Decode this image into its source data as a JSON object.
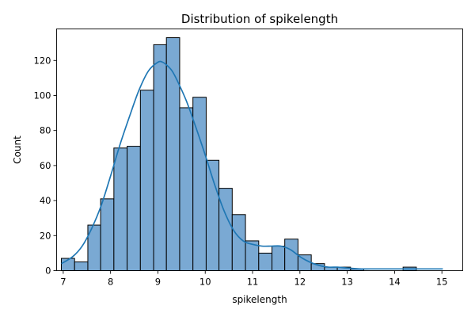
{
  "chart_data": {
    "type": "bar",
    "title": "Distribution of spikelength",
    "xlabel": "spikelength",
    "ylabel": "Count",
    "xlim": [
      6.86,
      15.44
    ],
    "ylim": [
      0,
      138
    ],
    "xticks": [
      7,
      8,
      9,
      10,
      11,
      12,
      13,
      14,
      15
    ],
    "yticks": [
      0,
      20,
      40,
      60,
      80,
      100,
      120
    ],
    "grid": false,
    "bar_color": "#7aa9d3",
    "kde_color": "#1f77b4",
    "bins": [
      {
        "start": 6.96,
        "end": 7.24,
        "count": 7
      },
      {
        "start": 7.24,
        "end": 7.52,
        "count": 5
      },
      {
        "start": 7.52,
        "end": 7.79,
        "count": 26
      },
      {
        "start": 7.79,
        "end": 8.07,
        "count": 41
      },
      {
        "start": 8.07,
        "end": 8.35,
        "count": 70
      },
      {
        "start": 8.35,
        "end": 8.63,
        "count": 71
      },
      {
        "start": 8.63,
        "end": 8.91,
        "count": 103
      },
      {
        "start": 8.91,
        "end": 9.18,
        "count": 129
      },
      {
        "start": 9.18,
        "end": 9.46,
        "count": 133
      },
      {
        "start": 9.46,
        "end": 9.74,
        "count": 93
      },
      {
        "start": 9.74,
        "end": 10.02,
        "count": 99
      },
      {
        "start": 10.02,
        "end": 10.29,
        "count": 63
      },
      {
        "start": 10.29,
        "end": 10.57,
        "count": 47
      },
      {
        "start": 10.57,
        "end": 10.85,
        "count": 32
      },
      {
        "start": 10.85,
        "end": 11.13,
        "count": 17
      },
      {
        "start": 11.13,
        "end": 11.41,
        "count": 10
      },
      {
        "start": 11.41,
        "end": 11.68,
        "count": 14
      },
      {
        "start": 11.68,
        "end": 11.96,
        "count": 18
      },
      {
        "start": 11.96,
        "end": 12.24,
        "count": 9
      },
      {
        "start": 12.24,
        "end": 12.52,
        "count": 4
      },
      {
        "start": 12.52,
        "end": 12.79,
        "count": 2
      },
      {
        "start": 12.79,
        "end": 13.07,
        "count": 2
      },
      {
        "start": 13.07,
        "end": 13.35,
        "count": 1
      },
      {
        "start": 13.35,
        "end": 13.63,
        "count": 0
      },
      {
        "start": 13.63,
        "end": 13.91,
        "count": 0
      },
      {
        "start": 13.91,
        "end": 14.18,
        "count": 0
      },
      {
        "start": 14.18,
        "end": 14.46,
        "count": 2
      },
      {
        "start": 14.46,
        "end": 14.74,
        "count": 0
      },
      {
        "start": 14.74,
        "end": 15.02,
        "count": 0
      }
    ],
    "kde": {
      "x": [
        6.96,
        7.2,
        7.4,
        7.6,
        7.8,
        8.0,
        8.2,
        8.4,
        8.6,
        8.8,
        9.0,
        9.1,
        9.2,
        9.3,
        9.4,
        9.6,
        9.8,
        10.0,
        10.2,
        10.4,
        10.6,
        10.8,
        11.0,
        11.2,
        11.4,
        11.6,
        11.8,
        12.0,
        12.2,
        12.4,
        12.6,
        12.8,
        13.0,
        13.3,
        13.6,
        14.0,
        14.4,
        14.8,
        15.02
      ],
      "y": [
        4,
        8,
        14,
        24,
        37,
        54,
        72,
        88,
        103,
        114,
        119,
        119,
        117,
        114,
        109,
        97,
        82,
        66,
        49,
        34,
        23,
        17,
        15,
        14,
        14,
        14,
        12,
        8,
        5,
        3,
        2,
        2,
        1.5,
        1,
        1,
        1,
        1,
        1,
        1
      ]
    }
  }
}
